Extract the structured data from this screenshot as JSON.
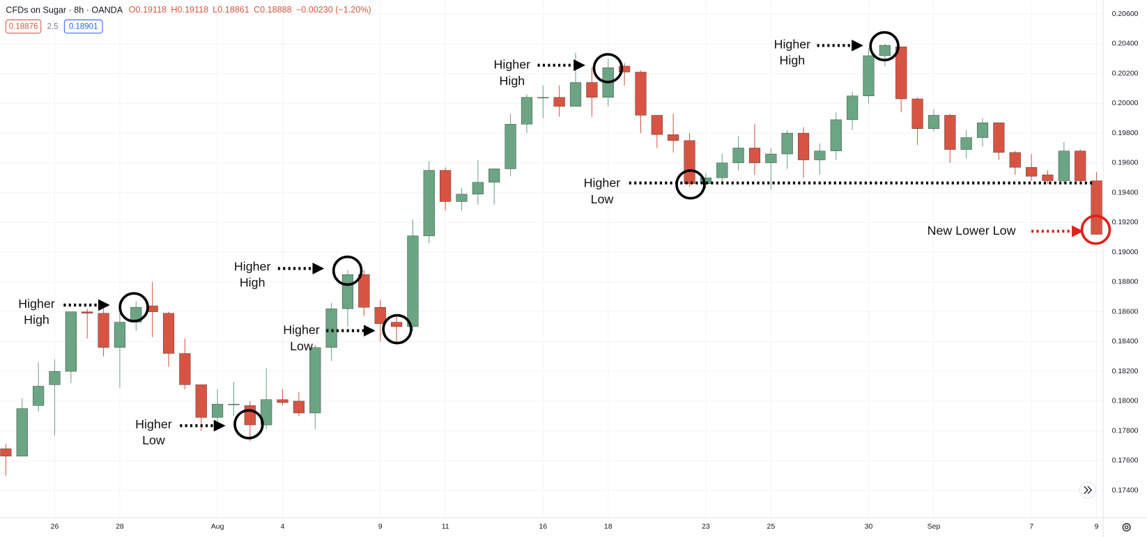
{
  "chart_data": {
    "type": "candlestick",
    "title": "CFDs on Sugar · 8h · OANDA",
    "readout": [
      "O0.19118",
      "H0.19118",
      "L0.18861",
      "C0.18888",
      "−0.00230 (−1.20%)"
    ],
    "badges": [
      "0.18876",
      "2.5",
      "0.18901"
    ],
    "up_color": "#6ba583",
    "down_color": "#d75442",
    "grid": true,
    "categories": [
      null,
      null,
      null,
      "26",
      null,
      null,
      null,
      "28",
      null,
      null,
      null,
      null,
      null,
      "Aug",
      null,
      null,
      null,
      "4",
      null,
      null,
      null,
      null,
      null,
      "9",
      null,
      null,
      null,
      "11",
      null,
      null,
      null,
      null,
      null,
      "16",
      null,
      null,
      null,
      "18",
      null,
      null,
      null,
      null,
      null,
      "23",
      null,
      null,
      null,
      "25",
      null,
      null,
      null,
      null,
      null,
      "30",
      null,
      null,
      null,
      "Sep",
      null,
      null,
      null,
      null,
      null,
      "7",
      null,
      null,
      null,
      "9"
    ],
    "open": [
      0.1768,
      0.1763,
      0.1797,
      0.1811,
      0.182,
      0.186,
      0.1859,
      0.1836,
      0.1853,
      0.1864,
      0.1859,
      0.1832,
      0.1811,
      0.1789,
      0.1798,
      0.1797,
      0.1784,
      0.1801,
      0.18,
      0.1792,
      0.1836,
      0.1862,
      0.1885,
      0.1863,
      0.1853,
      0.185,
      0.1911,
      0.1955,
      0.1934,
      0.1939,
      0.1947,
      0.1956,
      0.1986,
      0.2004,
      0.2004,
      0.1998,
      0.2014,
      0.2004,
      0.2025,
      0.2021,
      0.1992,
      0.1979,
      0.1975,
      0.1946,
      0.195,
      0.196,
      0.197,
      0.196,
      0.1966,
      0.198,
      0.1962,
      0.1968,
      0.1989,
      0.2005,
      0.2032,
      0.2038,
      0.2003,
      0.1983,
      0.1992,
      0.1969,
      0.1977,
      0.1987,
      0.1967,
      0.1957,
      0.1952,
      0.1948,
      0.1968,
      0.1948
    ],
    "high": [
      0.1771,
      0.1802,
      0.1826,
      0.1828,
      0.186,
      0.1862,
      0.1862,
      0.1859,
      0.1867,
      0.188,
      0.186,
      0.1842,
      0.1811,
      0.1808,
      0.1813,
      0.18,
      0.1822,
      0.1808,
      0.1806,
      0.1838,
      0.1866,
      0.1888,
      0.1888,
      0.1868,
      0.1858,
      0.1922,
      0.1961,
      0.1957,
      0.1943,
      0.1962,
      0.1956,
      0.1993,
      0.2006,
      0.2012,
      0.2012,
      0.2034,
      0.2024,
      0.203,
      0.2027,
      0.2022,
      0.1992,
      0.1993,
      0.198,
      0.1953,
      0.1966,
      0.1978,
      0.1986,
      0.197,
      0.1982,
      0.1984,
      0.1973,
      0.1994,
      0.2008,
      0.2037,
      0.204,
      0.2038,
      0.2004,
      0.1996,
      0.1993,
      0.1982,
      0.199,
      0.1987,
      0.1968,
      0.1966,
      0.1955,
      0.1974,
      0.1969,
      0.1954
    ],
    "low": [
      0.175,
      0.1763,
      0.1793,
      0.1777,
      0.1812,
      0.1842,
      0.183,
      0.1809,
      0.1847,
      0.1843,
      0.1823,
      0.1808,
      0.178,
      0.1783,
      0.179,
      0.1773,
      0.1781,
      0.1797,
      0.179,
      0.1781,
      0.1827,
      0.185,
      0.1857,
      0.184,
      0.1838,
      0.1847,
      0.1906,
      0.1928,
      0.1928,
      0.1932,
      0.1932,
      0.1951,
      0.198,
      0.199,
      0.1991,
      0.1998,
      0.1991,
      0.1998,
      0.2012,
      0.198,
      0.197,
      0.1967,
      0.1944,
      0.1943,
      0.1946,
      0.1955,
      0.1952,
      0.1942,
      0.1956,
      0.195,
      0.1952,
      0.1962,
      0.1982,
      0.2,
      0.2025,
      0.1994,
      0.1972,
      0.1981,
      0.196,
      0.1963,
      0.1971,
      0.1962,
      0.1952,
      0.1948,
      0.1946,
      0.1946,
      0.1946,
      0.1912
    ],
    "close": [
      0.1763,
      0.1795,
      0.181,
      0.182,
      0.186,
      0.1859,
      0.1836,
      0.1853,
      0.1863,
      0.186,
      0.1832,
      0.1811,
      0.1789,
      0.1798,
      0.1798,
      0.1784,
      0.1801,
      0.1799,
      0.1792,
      0.1836,
      0.1862,
      0.1885,
      0.1863,
      0.1852,
      0.185,
      0.1911,
      0.1955,
      0.1934,
      0.1939,
      0.1947,
      0.1956,
      0.1986,
      0.2004,
      0.2004,
      0.1998,
      0.2014,
      0.2004,
      0.2024,
      0.2021,
      0.1992,
      0.1979,
      0.1975,
      0.1946,
      0.195,
      0.196,
      0.197,
      0.196,
      0.1966,
      0.198,
      0.1962,
      0.1968,
      0.1989,
      0.2005,
      0.2032,
      0.2039,
      0.2003,
      0.1983,
      0.1992,
      0.1969,
      0.1977,
      0.1987,
      0.1967,
      0.1957,
      0.1951,
      0.1948,
      0.1968,
      0.1948,
      0.1912
    ],
    "ylim": [
      0.17216,
      0.20693
    ],
    "yticks": [
      {
        "value": 0.174,
        "label": "0.17400"
      },
      {
        "value": 0.176,
        "label": "0.17600"
      },
      {
        "value": 0.178,
        "label": "0.17800"
      },
      {
        "value": 0.18,
        "label": "0.18000"
      },
      {
        "value": 0.182,
        "label": "0.18200"
      },
      {
        "value": 0.184,
        "label": "0.18400"
      },
      {
        "value": 0.186,
        "label": "0.18600"
      },
      {
        "value": 0.188,
        "label": "0.18800"
      },
      {
        "value": 0.19,
        "label": "0.19000"
      },
      {
        "value": 0.192,
        "label": "0.19200"
      },
      {
        "value": 0.194,
        "label": "0.19400"
      },
      {
        "value": 0.196,
        "label": "0.19600"
      },
      {
        "value": 0.198,
        "label": "0.19800"
      },
      {
        "value": 0.2,
        "label": "0.20000"
      },
      {
        "value": 0.202,
        "label": "0.20200"
      },
      {
        "value": 0.204,
        "label": "0.20400"
      },
      {
        "value": 0.206,
        "label": "0.20600"
      }
    ],
    "annotations": [
      {
        "lines": [
          "Higher",
          "High"
        ]
      },
      {
        "lines": [
          "Higher",
          "Low"
        ]
      },
      {
        "lines": [
          "Higher",
          "High"
        ]
      },
      {
        "lines": [
          "Higher",
          "Low"
        ]
      },
      {
        "lines": [
          "Higher",
          "High"
        ]
      },
      {
        "lines": [
          "Higher",
          "Low"
        ]
      },
      {
        "lines": [
          "Higher",
          "High"
        ]
      },
      {
        "lines": [
          "New Lower Low"
        ],
        "color": "#e0201b"
      }
    ]
  }
}
